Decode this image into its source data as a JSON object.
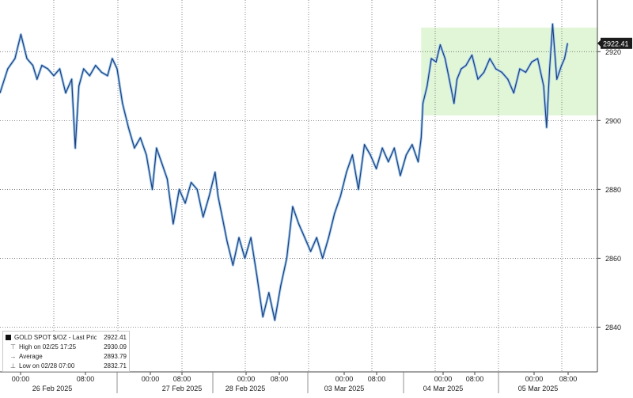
{
  "chart_data": {
    "type": "line",
    "title": "",
    "xlabel": "",
    "ylabel": "",
    "ylim": [
      2827,
      2935
    ],
    "y_ticks": [
      2840,
      2860,
      2880,
      2900,
      2920
    ],
    "y_tick_labels": [
      "2840",
      "2860",
      "2880",
      "2900",
      "2920"
    ],
    "x_tick_labels": [
      "00:00",
      "08:00",
      "00:00",
      "08:00",
      "00:00",
      "08:00",
      "00:00",
      "08:00",
      "00:00",
      "08:00",
      "00:00",
      "08:00"
    ],
    "day_labels": [
      "26 Feb 2025",
      "27 Feb 2025",
      "28 Feb 2025",
      "03 Mar 2025",
      "04 Mar 2025",
      "05 Mar 2025"
    ],
    "last_price_label": "2922.41",
    "grid": true,
    "line_color": "#1f3f7a",
    "highlight_color": "#daf5cf",
    "highlight_range": {
      "x_from": 0.705,
      "x_to": 1.0,
      "y_from": 2901.5,
      "y_to": 2927
    },
    "series": [
      {
        "name": "GOLD SPOT $/OZ - Last Price",
        "x": [
          0.0,
          0.013,
          0.025,
          0.035,
          0.045,
          0.055,
          0.062,
          0.07,
          0.08,
          0.09,
          0.1,
          0.11,
          0.12,
          0.126,
          0.132,
          0.14,
          0.15,
          0.16,
          0.17,
          0.18,
          0.188,
          0.196,
          0.205,
          0.215,
          0.225,
          0.235,
          0.245,
          0.255,
          0.262,
          0.27,
          0.28,
          0.29,
          0.3,
          0.31,
          0.32,
          0.33,
          0.34,
          0.35,
          0.36,
          0.365,
          0.372,
          0.38,
          0.39,
          0.4,
          0.41,
          0.42,
          0.43,
          0.44,
          0.45,
          0.46,
          0.47,
          0.48,
          0.49,
          0.5,
          0.51,
          0.52,
          0.53,
          0.54,
          0.55,
          0.56,
          0.57,
          0.58,
          0.59,
          0.6,
          0.61,
          0.62,
          0.63,
          0.64,
          0.65,
          0.66,
          0.67,
          0.68,
          0.69,
          0.7,
          0.705,
          0.708,
          0.715,
          0.722,
          0.73,
          0.737,
          0.745,
          0.752,
          0.76,
          0.765,
          0.772,
          0.78,
          0.79,
          0.8,
          0.81,
          0.82,
          0.83,
          0.84,
          0.85,
          0.86,
          0.87,
          0.88,
          0.89,
          0.9,
          0.91,
          0.915,
          0.92,
          0.925,
          0.932,
          0.94,
          0.945,
          0.95
        ],
        "values": [
          2908,
          2915,
          2918,
          2925,
          2918,
          2916,
          2912,
          2916,
          2915,
          2913,
          2915,
          2908,
          2912,
          2892,
          2910,
          2915,
          2913,
          2916,
          2914,
          2913,
          2918,
          2915,
          2905,
          2898,
          2892,
          2895,
          2890,
          2880,
          2892,
          2888,
          2883,
          2870,
          2880,
          2876,
          2882,
          2880,
          2872,
          2878,
          2885,
          2878,
          2872,
          2865,
          2858,
          2866,
          2860,
          2866,
          2855,
          2843,
          2850,
          2842,
          2852,
          2860,
          2875,
          2870,
          2866,
          2862,
          2866,
          2860,
          2866,
          2873,
          2878,
          2885,
          2890,
          2880,
          2893,
          2890,
          2886,
          2892,
          2888,
          2892,
          2884,
          2890,
          2893,
          2888,
          2895,
          2905,
          2910,
          2918,
          2917,
          2922,
          2918,
          2912,
          2905,
          2912,
          2915,
          2916,
          2919,
          2912,
          2914,
          2918,
          2915,
          2914,
          2912,
          2908,
          2915,
          2914,
          2917,
          2918,
          2910,
          2898,
          2915,
          2928,
          2912,
          2916,
          2918,
          2922.41
        ]
      }
    ],
    "legend": {
      "title": "GOLD SPOT $/OZ - Last Price",
      "title_value": "2922.41",
      "rows": [
        {
          "icon": "high-marker-icon",
          "label": "High on 02/25 17:25",
          "value": "2930.09"
        },
        {
          "icon": "average-marker-icon",
          "label": "Average",
          "value": "2893.79"
        },
        {
          "icon": "low-marker-icon",
          "label": "Low on 02/28 07:00",
          "value": "2832.71"
        }
      ]
    }
  }
}
